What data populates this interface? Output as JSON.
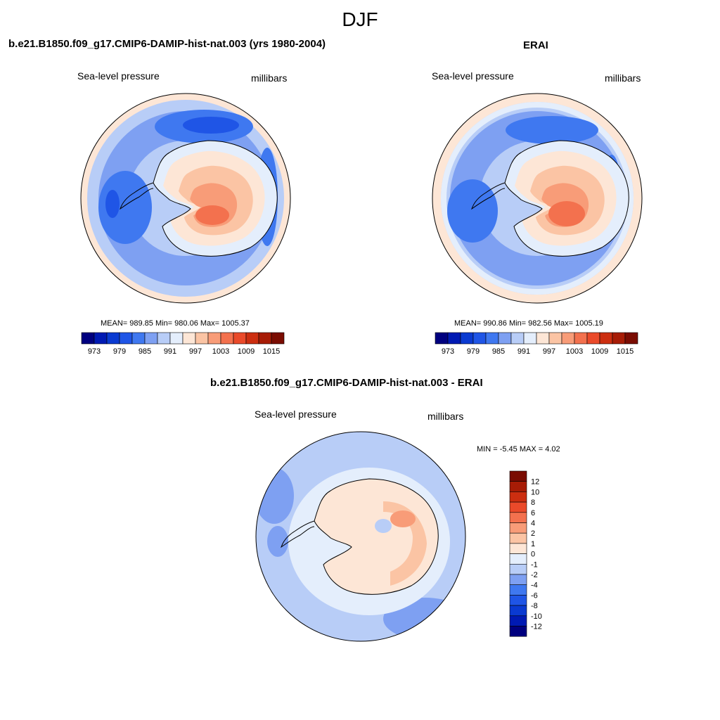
{
  "title": "DJF",
  "colors": {
    "scale": [
      "#00007f",
      "#001ab3",
      "#0a3ad1",
      "#1f55e6",
      "#3f78f0",
      "#7ea0f2",
      "#b8cdf7",
      "#e4eefc",
      "#fde6d6",
      "#fbc4a4",
      "#f89c78",
      "#f3714e",
      "#ea4a2a",
      "#cc2e10",
      "#a71c06",
      "#7a0c02"
    ],
    "coast": "#000000"
  },
  "panels": {
    "model": {
      "title": "b.e21.B1850.f09_g17.CMIP6-DAMIP-hist-nat.003 (yrs 1980-2004)",
      "variable": "Sea-level pressure",
      "units": "millibars",
      "stats": "MEAN= 989.85  Min= 980.06  Max= 1005.37",
      "colorbar_labels": [
        "973",
        "979",
        "985",
        "991",
        "997",
        "1003",
        "1009",
        "1015"
      ]
    },
    "obs": {
      "title": "ERAI",
      "variable": "Sea-level pressure",
      "units": "millibars",
      "stats": "MEAN= 990.86  Min= 982.56  Max= 1005.19",
      "colorbar_labels": [
        "973",
        "979",
        "985",
        "991",
        "997",
        "1003",
        "1009",
        "1015"
      ]
    },
    "diff": {
      "title": "b.e21.B1850.f09_g17.CMIP6-DAMIP-hist-nat.003 - ERAI",
      "variable": "Sea-level pressure",
      "units": "millibars",
      "stats": "MIN =  -5.45 MAX =   4.02",
      "colorbar_labels": [
        "12",
        "10",
        "8",
        "6",
        "4",
        "2",
        "1",
        "0",
        "-1",
        "-2",
        "-4",
        "-6",
        "-8",
        "-10",
        "-12"
      ]
    }
  }
}
